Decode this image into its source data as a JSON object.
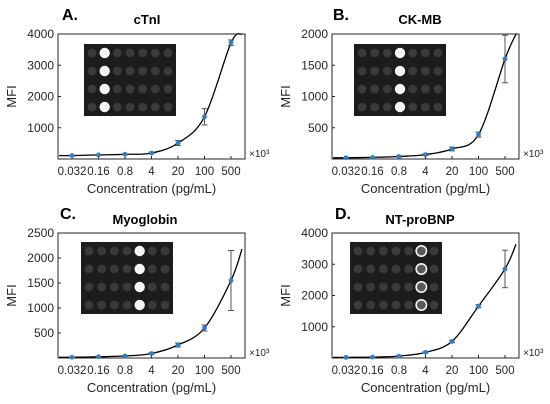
{
  "figure": {
    "x_multiplier": "×10³",
    "colors": {
      "axis": "#262626",
      "fit": "#000000",
      "point": "#2e7fc7",
      "errorbar": "#555555",
      "inset_bg": "#1c1c1c",
      "inset_dot": "#3a3a3a",
      "inset_bright": "#f4f4f4"
    }
  },
  "chart_data": [
    {
      "panel": "A.",
      "title": "cTnI",
      "type": "scatter",
      "xlabel": "Concentration (pg/mL)",
      "ylabel": "MFI",
      "x_scale": "log",
      "x": [
        0.032,
        0.16,
        0.8,
        4,
        20,
        100,
        500
      ],
      "xtick_labels": [
        "0.032",
        "0.16",
        "0.8",
        "4",
        "20",
        "100",
        "500"
      ],
      "y": [
        110,
        130,
        150,
        190,
        510,
        1350,
        3720
      ],
      "yerr": [
        15,
        15,
        15,
        30,
        80,
        260,
        90
      ],
      "ylim": [
        0,
        4000
      ],
      "yticks": [
        1000,
        2000,
        3000,
        4000
      ],
      "ytick_labels": [
        "1000",
        "2000",
        "3000",
        "4000"
      ],
      "inset": {
        "bright_column": 1,
        "style": "solid"
      }
    },
    {
      "panel": "B.",
      "title": "CK-MB",
      "type": "scatter",
      "xlabel": "Concentration (pg/mL)",
      "ylabel": "MFI",
      "x_scale": "log",
      "x": [
        0.032,
        0.16,
        0.8,
        4,
        20,
        100,
        500
      ],
      "xtick_labels": [
        "0.032",
        "0.16",
        "0.8",
        "4",
        "20",
        "100",
        "500"
      ],
      "y": [
        20,
        25,
        40,
        70,
        160,
        390,
        1600
      ],
      "yerr": [
        5,
        5,
        10,
        15,
        30,
        40,
        380
      ],
      "ylim": [
        0,
        2000
      ],
      "yticks": [
        500,
        1000,
        1500,
        2000
      ],
      "ytick_labels": [
        "500",
        "1000",
        "1500",
        "2000"
      ],
      "inset": {
        "bright_column": 3,
        "style": "solid"
      }
    },
    {
      "panel": "C.",
      "title": "Myoglobin",
      "type": "scatter",
      "xlabel": "Concentration (pg/mL)",
      "ylabel": "MFI",
      "x_scale": "log",
      "x": [
        0.032,
        0.16,
        0.8,
        4,
        20,
        100,
        500
      ],
      "xtick_labels": [
        "0.032",
        "0.16",
        "0.8",
        "4",
        "20",
        "100",
        "500"
      ],
      "y": [
        15,
        25,
        40,
        90,
        260,
        600,
        1550
      ],
      "yerr": [
        5,
        5,
        10,
        15,
        40,
        60,
        600
      ],
      "ylim": [
        0,
        2500
      ],
      "yticks": [
        500,
        1000,
        1500,
        2000,
        2500
      ],
      "ytick_labels": [
        "500",
        "1000",
        "1500",
        "2000",
        "2500"
      ],
      "inset": {
        "bright_column": 4,
        "style": "solid"
      }
    },
    {
      "panel": "D.",
      "title": "NT-proBNP",
      "type": "scatter",
      "xlabel": "Concentration (pg/mL)",
      "ylabel": "MFI",
      "x_scale": "log",
      "x": [
        0.032,
        0.16,
        0.8,
        4,
        20,
        100,
        500
      ],
      "xtick_labels": [
        "0.032",
        "0.16",
        "0.8",
        "4",
        "20",
        "100",
        "500"
      ],
      "y": [
        20,
        30,
        60,
        180,
        530,
        1660,
        2850
      ],
      "yerr": [
        5,
        5,
        10,
        20,
        40,
        50,
        600
      ],
      "ylim": [
        0,
        4000
      ],
      "yticks": [
        1000,
        2000,
        3000,
        4000
      ],
      "ytick_labels": [
        "1000",
        "2000",
        "3000",
        "4000"
      ],
      "inset": {
        "bright_column": 5,
        "style": "ring"
      }
    }
  ]
}
